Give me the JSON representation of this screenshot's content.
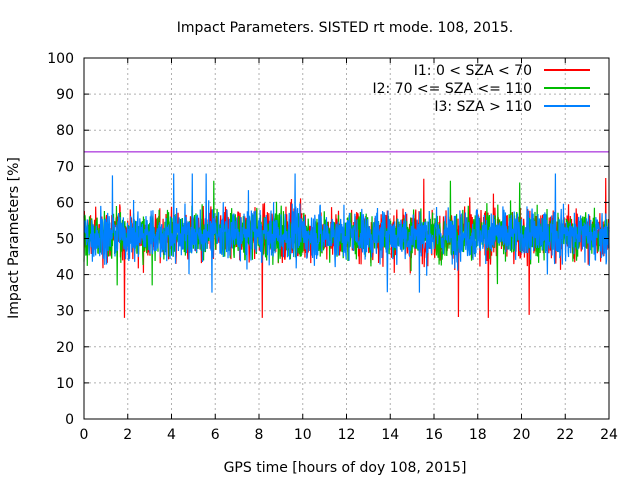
{
  "chart_data": {
    "type": "line",
    "title": "Impact Parameters. SISTED rt mode. 108, 2015.",
    "xlabel": "GPS time [hours of doy 108, 2015]",
    "ylabel": "Impact Parameters [%]",
    "xlim": [
      0,
      24
    ],
    "ylim": [
      0,
      100
    ],
    "xticks": [
      "0",
      "2",
      "4",
      "6",
      "8",
      "10",
      "12",
      "14",
      "16",
      "18",
      "20",
      "22",
      "24"
    ],
    "yticks": [
      "0",
      "10",
      "20",
      "30",
      "40",
      "50",
      "60",
      "70",
      "80",
      "90",
      "100"
    ],
    "grid": true,
    "legend_position": "top-right",
    "reference_line": {
      "y": 74,
      "color": "#9400d3"
    },
    "series": [
      {
        "name": "I1: 0 < SZA < 70",
        "color": "#ff0000",
        "mean": 51,
        "min": 28,
        "max": 67
      },
      {
        "name": "I2: 70 <= SZA <= 110",
        "color": "#00bb00",
        "mean": 51,
        "min": 37,
        "max": 66
      },
      {
        "name": "I3: SZA > 110",
        "color": "#0080ff",
        "mean": 51,
        "min": 35,
        "max": 68
      }
    ]
  }
}
